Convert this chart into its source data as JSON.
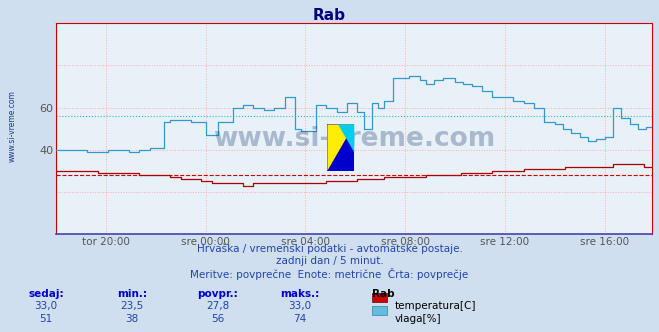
{
  "title": "Rab",
  "bg_color": "#d0dff0",
  "plot_bg_color": "#e8f0f8",
  "grid_color_h": "#ff8888",
  "grid_color_v": "#ccccff",
  "x_ticks_labels": [
    "tor 20:00",
    "sre 00:00",
    "sre 04:00",
    "sre 08:00",
    "sre 12:00",
    "sre 16:00"
  ],
  "y_ticks": [
    40,
    60
  ],
  "ylim": [
    0,
    100
  ],
  "temp_avg": 27.8,
  "temp_color": "#aa0000",
  "temp_dashed_color": "#cc0000",
  "humidity_avg": 56,
  "humidity_color": "#3399cc",
  "humidity_dashed_color": "#33bbcc",
  "subtitle1": "Hrvaška / vremenski podatki - avtomatske postaje.",
  "subtitle2": "zadnji dan / 5 minut.",
  "subtitle3": "Meritve: povprečne  Enote: metrične  Črta: povprečje",
  "legend_title": "Rab",
  "legend_temp_label": "temperatura[C]",
  "legend_humidity_label": "vlaga[%]",
  "table_headers": [
    "sedaj:",
    "min.:",
    "povpr.:",
    "maks.:"
  ],
  "table_temp": [
    "33,0",
    "23,5",
    "27,8",
    "33,0"
  ],
  "table_humidity": [
    "51",
    "38",
    "56",
    "74"
  ],
  "watermark": "www.si-vreme.com",
  "watermark_color": "#1a3a6a",
  "sidebar_text": "www.si-vreme.com",
  "sidebar_color": "#1a3a8a",
  "temp_line_color": "#cc0000",
  "humidity_line_color": "#5599bb"
}
